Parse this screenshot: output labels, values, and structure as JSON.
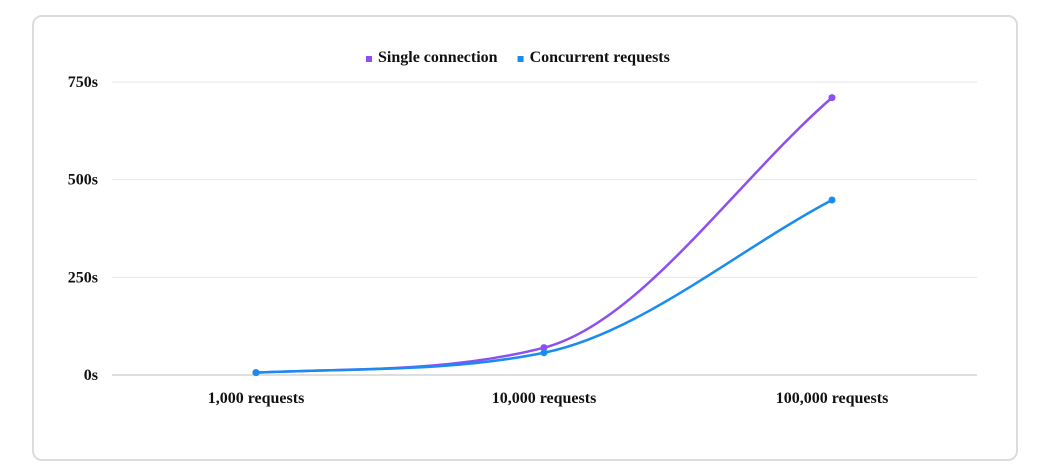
{
  "chart_data": {
    "type": "line",
    "title": "",
    "xlabel": "",
    "ylabel": "",
    "categories": [
      "1,000 requests",
      "10,000 requests",
      "100,000 requests"
    ],
    "y_ticks": [
      "0s",
      "250s",
      "500s",
      "750s"
    ],
    "y_tick_values": [
      0,
      250,
      500,
      750
    ],
    "ylim": [
      0,
      750
    ],
    "grid": true,
    "legend_position": "top-center",
    "series": [
      {
        "name": "Single connection",
        "color": "#8e4ff0",
        "values": [
          6,
          70,
          710
        ]
      },
      {
        "name": "Concurrent requests",
        "color": "#1a8cf0",
        "values": [
          6,
          57,
          448
        ]
      }
    ]
  }
}
